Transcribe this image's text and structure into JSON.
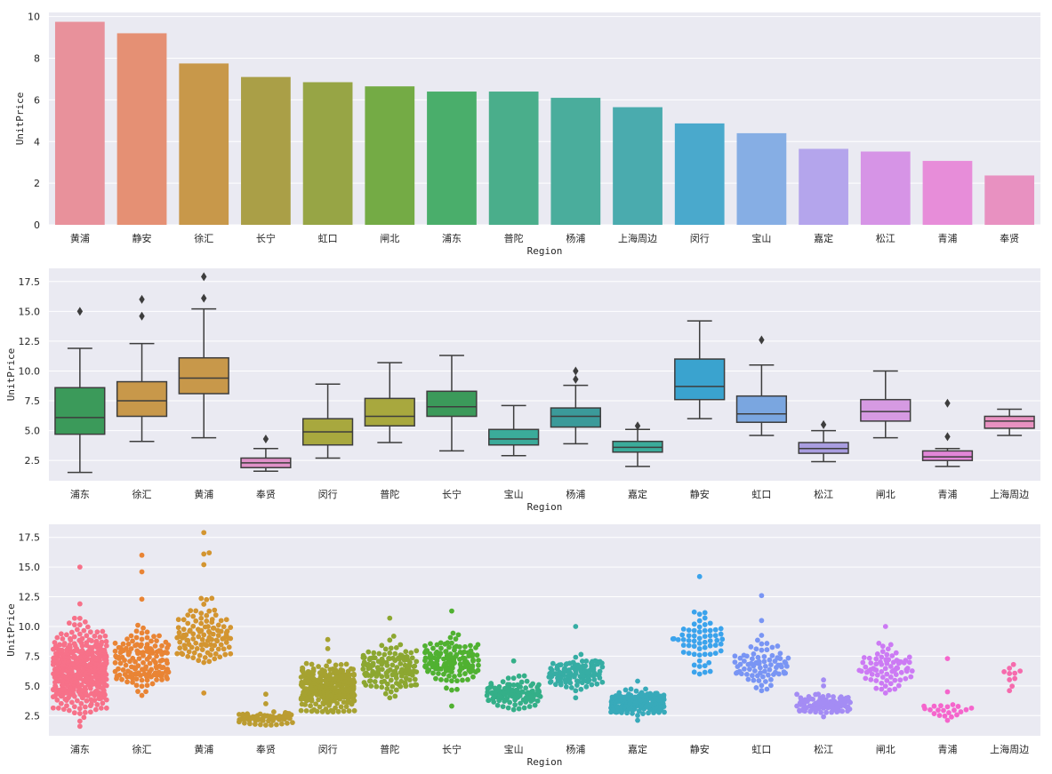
{
  "chart_data": [
    {
      "type": "bar",
      "xlabel": "Region",
      "ylabel": "UnitPrice",
      "ylim": [
        0,
        10.2
      ],
      "yticks": [
        0,
        2,
        4,
        6,
        8,
        10
      ],
      "yticklabels": [
        "0",
        "2",
        "4",
        "6",
        "8",
        "10"
      ],
      "categories": [
        "黄浦",
        "静安",
        "徐汇",
        "长宁",
        "虹口",
        "闸北",
        "浦东",
        "普陀",
        "杨浦",
        "上海周边",
        "闵行",
        "宝山",
        "嘉定",
        "松江",
        "青浦",
        "奉贤"
      ],
      "values": [
        9.75,
        9.2,
        7.75,
        7.1,
        6.85,
        6.65,
        6.4,
        6.4,
        6.1,
        5.65,
        4.87,
        4.4,
        3.65,
        3.52,
        3.07,
        2.37
      ],
      "colors": [
        "#e8919b",
        "#e59074",
        "#c8984a",
        "#aa9f47",
        "#97a545",
        "#74ab45",
        "#4aae6b",
        "#4aae8b",
        "#4aad9c",
        "#4aabae",
        "#4aa9cc",
        "#86aee4",
        "#b4a5ec",
        "#d694e6",
        "#e78dd9",
        "#e891c1"
      ]
    },
    {
      "type": "box",
      "xlabel": "Region",
      "ylabel": "UnitPrice",
      "ylim": [
        0.8,
        18.6
      ],
      "yticks": [
        2.5,
        5.0,
        7.5,
        10.0,
        12.5,
        15.0,
        17.5
      ],
      "yticklabels": [
        "2.5",
        "5.0",
        "7.5",
        "10.0",
        "12.5",
        "15.0",
        "17.5"
      ],
      "categories": [
        "浦东",
        "徐汇",
        "黄浦",
        "奉贤",
        "闵行",
        "普陀",
        "长宁",
        "宝山",
        "杨浦",
        "嘉定",
        "静安",
        "虹口",
        "松江",
        "闸北",
        "青浦",
        "上海周边"
      ],
      "colors": [
        "#3b9a5a",
        "#c8984a",
        "#c8984a",
        "#e091c8",
        "#a8a83e",
        "#a8a83e",
        "#3b9a5a",
        "#3bab9a",
        "#3b9a9a",
        "#3bab9a",
        "#3aa3cf",
        "#7aa6e0",
        "#a99de0",
        "#d69ae2",
        "#e286d8",
        "#e891c1"
      ],
      "boxes": [
        {
          "whislo": 1.5,
          "q1": 4.7,
          "med": 6.1,
          "q3": 8.6,
          "whishi": 11.9,
          "fliers": [
            15.0
          ]
        },
        {
          "whislo": 4.1,
          "q1": 6.2,
          "med": 7.5,
          "q3": 9.1,
          "whishi": 12.3,
          "fliers": [
            14.6,
            16.0
          ]
        },
        {
          "whislo": 4.4,
          "q1": 8.1,
          "med": 9.4,
          "q3": 11.1,
          "whishi": 15.2,
          "fliers": [
            16.1,
            17.9
          ]
        },
        {
          "whislo": 1.6,
          "q1": 1.9,
          "med": 2.3,
          "q3": 2.7,
          "whishi": 3.5,
          "fliers": [
            4.3
          ]
        },
        {
          "whislo": 2.7,
          "q1": 3.8,
          "med": 4.9,
          "q3": 6.0,
          "whishi": 8.9,
          "fliers": []
        },
        {
          "whislo": 4.0,
          "q1": 5.4,
          "med": 6.2,
          "q3": 7.7,
          "whishi": 10.7,
          "fliers": []
        },
        {
          "whislo": 3.3,
          "q1": 6.2,
          "med": 7.0,
          "q3": 8.3,
          "whishi": 11.3,
          "fliers": []
        },
        {
          "whislo": 2.9,
          "q1": 3.8,
          "med": 4.3,
          "q3": 5.1,
          "whishi": 7.1,
          "fliers": []
        },
        {
          "whislo": 3.9,
          "q1": 5.3,
          "med": 6.2,
          "q3": 6.9,
          "whishi": 8.8,
          "fliers": [
            9.3,
            10.0
          ]
        },
        {
          "whislo": 2.0,
          "q1": 3.2,
          "med": 3.6,
          "q3": 4.1,
          "whishi": 5.1,
          "fliers": [
            5.4
          ]
        },
        {
          "whislo": 6.0,
          "q1": 7.6,
          "med": 8.7,
          "q3": 11.0,
          "whishi": 14.2,
          "fliers": []
        },
        {
          "whislo": 4.6,
          "q1": 5.7,
          "med": 6.4,
          "q3": 7.9,
          "whishi": 10.5,
          "fliers": [
            12.6
          ]
        },
        {
          "whislo": 2.4,
          "q1": 3.1,
          "med": 3.5,
          "q3": 4.0,
          "whishi": 5.0,
          "fliers": [
            5.5
          ]
        },
        {
          "whislo": 4.4,
          "q1": 5.8,
          "med": 6.6,
          "q3": 7.6,
          "whishi": 10.0,
          "fliers": []
        },
        {
          "whislo": 2.0,
          "q1": 2.5,
          "med": 2.8,
          "q3": 3.3,
          "whishi": 3.5,
          "fliers": [
            4.5,
            7.3
          ]
        },
        {
          "whislo": 4.6,
          "q1": 5.2,
          "med": 5.8,
          "q3": 6.2,
          "whishi": 6.8,
          "fliers": []
        }
      ]
    },
    {
      "type": "swarm",
      "xlabel": "Region",
      "ylabel": "UnitPrice",
      "ylim": [
        0.8,
        18.6
      ],
      "yticks": [
        2.5,
        5.0,
        7.5,
        10.0,
        12.5,
        15.0,
        17.5
      ],
      "yticklabels": [
        "2.5",
        "5.0",
        "7.5",
        "10.0",
        "12.5",
        "15.0",
        "17.5"
      ],
      "categories": [
        "浦东",
        "徐汇",
        "黄浦",
        "奉贤",
        "闵行",
        "普陀",
        "长宁",
        "宝山",
        "杨浦",
        "嘉定",
        "静安",
        "虹口",
        "松江",
        "闸北",
        "青浦",
        "上海周边"
      ],
      "colors": [
        "#f77189",
        "#e98434",
        "#d39530",
        "#bb9c31",
        "#a6a231",
        "#8ca731",
        "#50b131",
        "#34af88",
        "#36ada4",
        "#38aaba",
        "#3ba3ec",
        "#7995f4",
        "#a48cf4",
        "#cc7af4",
        "#f565cc",
        "#f66bad"
      ],
      "groups": [
        {
          "n": 520,
          "min": 1.6,
          "max": 11.9,
          "center": 6.2,
          "spread": 2.3,
          "fliers": [
            15.0
          ],
          "halfwidth": 30
        },
        {
          "n": 150,
          "min": 4.2,
          "max": 12.3,
          "center": 7.3,
          "spread": 1.6,
          "fliers": [
            14.6,
            16.0
          ],
          "halfwidth": 30
        },
        {
          "n": 110,
          "min": 4.4,
          "max": 15.2,
          "center": 9.2,
          "spread": 2.0,
          "fliers": [
            16.1,
            16.2,
            17.9
          ],
          "halfwidth": 30
        },
        {
          "n": 70,
          "min": 1.7,
          "max": 3.5,
          "center": 2.3,
          "spread": 0.45,
          "fliers": [
            4.3
          ],
          "halfwidth": 30
        },
        {
          "n": 360,
          "min": 2.8,
          "max": 8.9,
          "center": 4.9,
          "spread": 1.3,
          "fliers": [],
          "halfwidth": 30
        },
        {
          "n": 140,
          "min": 4.0,
          "max": 10.7,
          "center": 6.5,
          "spread": 1.4,
          "fliers": [],
          "halfwidth": 30
        },
        {
          "n": 140,
          "min": 3.3,
          "max": 11.3,
          "center": 7.1,
          "spread": 1.3,
          "fliers": [],
          "halfwidth": 30
        },
        {
          "n": 120,
          "min": 3.0,
          "max": 7.1,
          "center": 4.4,
          "spread": 0.8,
          "fliers": [],
          "halfwidth": 30
        },
        {
          "n": 130,
          "min": 4.0,
          "max": 10.0,
          "center": 6.1,
          "spread": 1.0,
          "fliers": [],
          "halfwidth": 30
        },
        {
          "n": 230,
          "min": 2.1,
          "max": 5.4,
          "center": 3.6,
          "spread": 0.6,
          "fliers": [],
          "halfwidth": 30
        },
        {
          "n": 60,
          "min": 6.0,
          "max": 14.2,
          "center": 8.8,
          "spread": 1.8,
          "fliers": [],
          "halfwidth": 30
        },
        {
          "n": 80,
          "min": 4.6,
          "max": 10.5,
          "center": 6.8,
          "spread": 1.2,
          "fliers": [
            12.6
          ],
          "halfwidth": 30
        },
        {
          "n": 110,
          "min": 2.4,
          "max": 5.0,
          "center": 3.5,
          "spread": 0.55,
          "fliers": [
            5.5
          ],
          "halfwidth": 30
        },
        {
          "n": 75,
          "min": 4.4,
          "max": 10.0,
          "center": 6.6,
          "spread": 1.2,
          "fliers": [],
          "halfwidth": 30
        },
        {
          "n": 20,
          "min": 2.1,
          "max": 4.5,
          "center": 2.9,
          "spread": 0.5,
          "fliers": [
            7.3
          ],
          "halfwidth": 30
        },
        {
          "n": 8,
          "min": 4.6,
          "max": 6.8,
          "center": 5.7,
          "spread": 0.6,
          "fliers": [],
          "halfwidth": 30
        }
      ]
    }
  ]
}
